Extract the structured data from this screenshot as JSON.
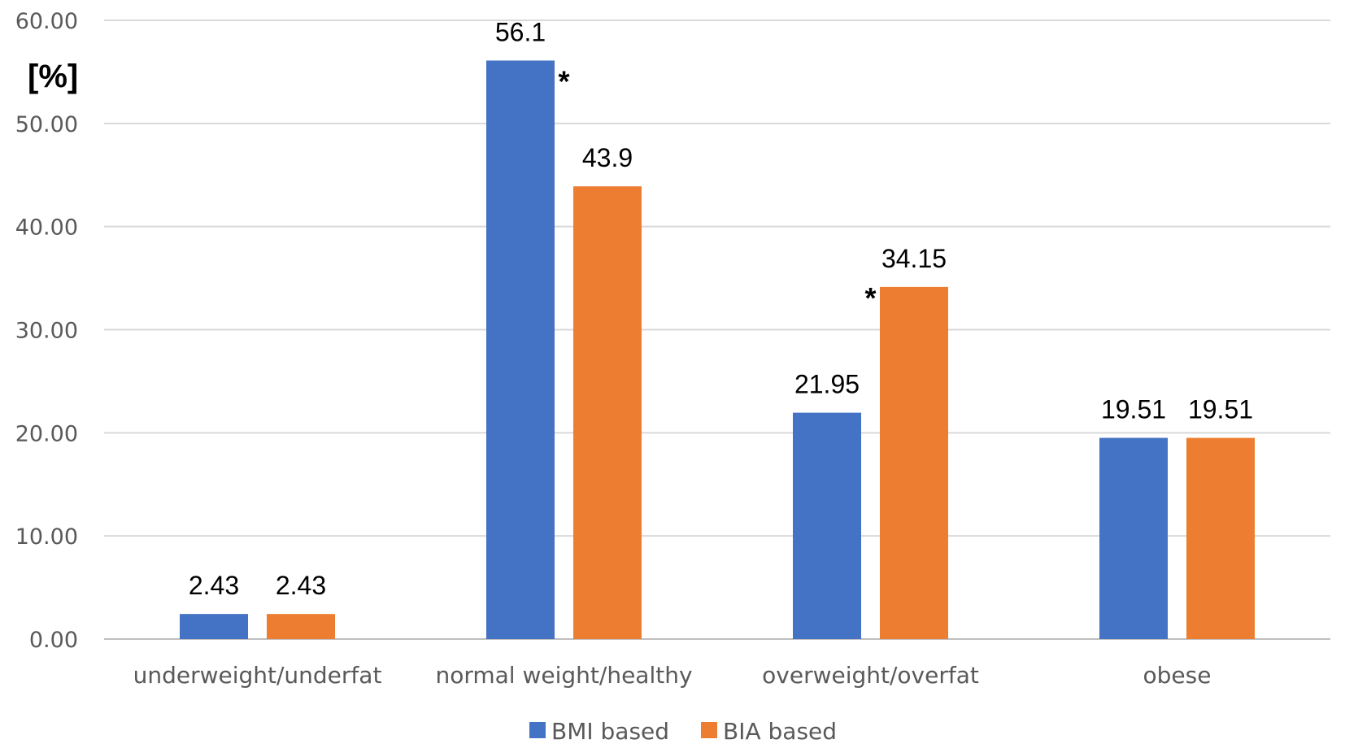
{
  "chart_data": {
    "type": "bar",
    "title": "",
    "xlabel": "",
    "ylabel": "[%]",
    "ylim": [
      0,
      60
    ],
    "yticks": [
      0,
      10,
      20,
      30,
      40,
      50,
      60
    ],
    "ytick_labels": [
      "0.00",
      "10.00",
      "20.00",
      "30.00",
      "40.00",
      "50.00",
      "60.00"
    ],
    "grid": true,
    "legend_position": "bottom",
    "categories": [
      "underweight/underfat",
      "normal weight/healthy",
      "overweight/overfat",
      "obese"
    ],
    "series": [
      {
        "name": "BMI based",
        "color": "#4472C4",
        "values": [
          2.43,
          56.1,
          21.95,
          19.51
        ],
        "labels": [
          "2.43",
          "56.1",
          "21.95",
          "19.51"
        ]
      },
      {
        "name": "BIA based",
        "color": "#ED7D31",
        "values": [
          2.43,
          43.9,
          34.15,
          19.51
        ],
        "labels": [
          "2.43",
          "43.9",
          "34.15",
          "19.51"
        ]
      }
    ],
    "annotations": [
      {
        "text": "*",
        "category": "normal weight/healthy",
        "value": 55
      },
      {
        "text": "*",
        "category": "overweight/overfat",
        "value": 34
      }
    ]
  }
}
